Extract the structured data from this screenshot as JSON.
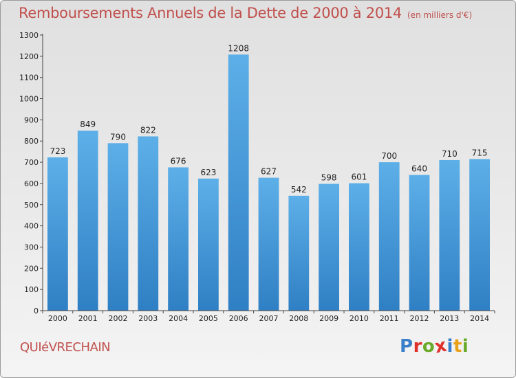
{
  "header": {
    "title": "Remboursements Annuels de la Dette de 2000 à 2014",
    "subtitle": "(en milliers d'€)"
  },
  "footer": {
    "place": "QUIéVRECHAIN",
    "logo": [
      "P",
      "r",
      "o",
      "x",
      "i",
      "t",
      "i"
    ],
    "logo_colors": [
      "#3a7fc9",
      "#e0302a",
      "#6aaa2a",
      "#e0302a",
      "#3a7fc9",
      "#e8a21a",
      "#6aaa2a"
    ]
  },
  "colors": {
    "bar_top": "#5dafe8",
    "bar_bottom": "#2f7fc4",
    "title": "#c0504d"
  },
  "chart_data": {
    "type": "bar",
    "categories": [
      "2000",
      "2001",
      "2002",
      "2003",
      "2004",
      "2005",
      "2006",
      "2007",
      "2008",
      "2009",
      "2010",
      "2011",
      "2012",
      "2013",
      "2014"
    ],
    "values": [
      723,
      849,
      790,
      822,
      676,
      623,
      1208,
      627,
      542,
      598,
      601,
      700,
      640,
      710,
      715
    ],
    "title": "Remboursements Annuels de la Dette de 2000 à 2014",
    "xlabel": "",
    "ylabel": "",
    "ylim": [
      0,
      1300
    ],
    "yticks": [
      0,
      100,
      200,
      300,
      400,
      500,
      600,
      700,
      800,
      900,
      1000,
      1100,
      1200,
      1300
    ],
    "grid": false,
    "data_labels": true
  }
}
